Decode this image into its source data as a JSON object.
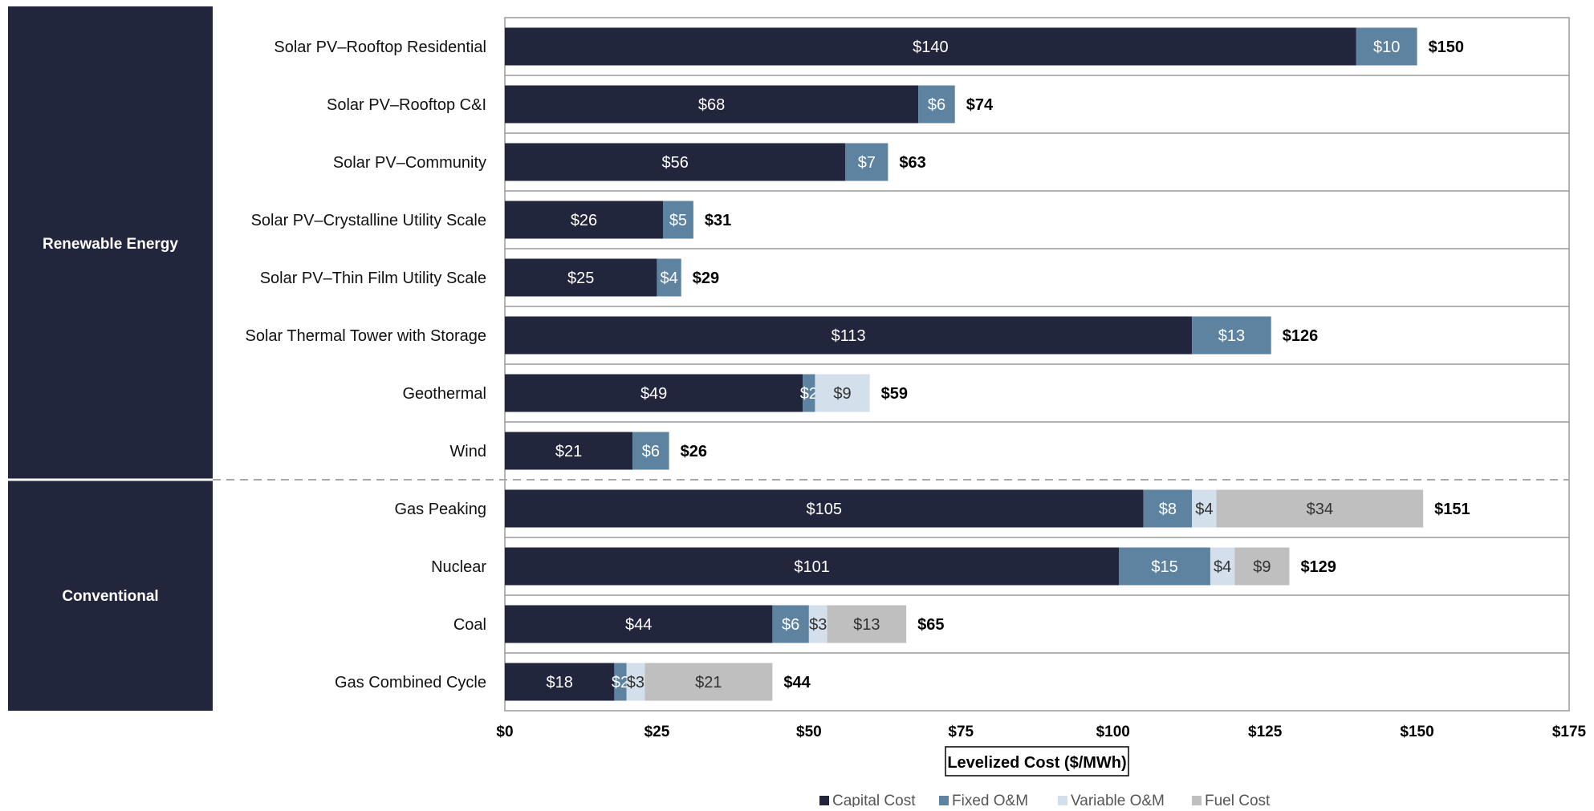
{
  "chart_data": {
    "type": "bar",
    "orientation": "horizontal",
    "stacked": true,
    "title": "",
    "xlabel": "Levelized Cost ($/MWh)",
    "ylabel": "",
    "xlim": [
      0,
      175
    ],
    "x_ticks": [
      "$0",
      "$25",
      "$50",
      "$75",
      "$100",
      "$125",
      "$150",
      "$175"
    ],
    "groups": [
      {
        "label": "Renewable Energy",
        "categories": [
          "Solar PV–Rooftop Residential",
          "Solar PV–Rooftop C&I",
          "Solar PV–Community",
          "Solar PV–Crystalline Utility Scale",
          "Solar PV–Thin Film Utility Scale",
          "Solar Thermal Tower with Storage",
          "Geothermal",
          "Wind"
        ]
      },
      {
        "label": "Conventional",
        "categories": [
          "Gas Peaking",
          "Nuclear",
          "Coal",
          "Gas Combined Cycle"
        ]
      }
    ],
    "categories": [
      "Solar PV–Rooftop Residential",
      "Solar PV–Rooftop C&I",
      "Solar PV–Community",
      "Solar PV–Crystalline Utility Scale",
      "Solar PV–Thin Film Utility Scale",
      "Solar Thermal Tower with Storage",
      "Geothermal",
      "Wind",
      "Gas Peaking",
      "Nuclear",
      "Coal",
      "Gas Combined Cycle"
    ],
    "series": [
      {
        "name": "Capital Cost",
        "color": "#22263d",
        "label_color": "#ffffff",
        "values": [
          140,
          68,
          56,
          26,
          25,
          113,
          49,
          21,
          105,
          101,
          44,
          18
        ]
      },
      {
        "name": "Fixed O&M",
        "color": "#5e83a0",
        "label_color": "#ffffff",
        "values": [
          10,
          6,
          7,
          5,
          4,
          13,
          2,
          6,
          8,
          15,
          6,
          2
        ]
      },
      {
        "name": "Variable O&M",
        "color": "#d3dfea",
        "label_color": "#333333",
        "values": [
          0,
          0,
          0,
          0,
          0,
          0,
          9,
          0,
          4,
          4,
          3,
          3
        ]
      },
      {
        "name": "Fuel Cost",
        "color": "#bfbfbf",
        "label_color": "#333333",
        "values": [
          0,
          0,
          0,
          0,
          0,
          0,
          0,
          0,
          34,
          9,
          13,
          21
        ]
      }
    ],
    "totals": [
      150,
      74,
      63,
      31,
      29,
      126,
      59,
      26,
      151,
      129,
      65,
      44
    ],
    "value_prefix": "$",
    "legend": {
      "position": "bottom"
    },
    "grid": false
  }
}
